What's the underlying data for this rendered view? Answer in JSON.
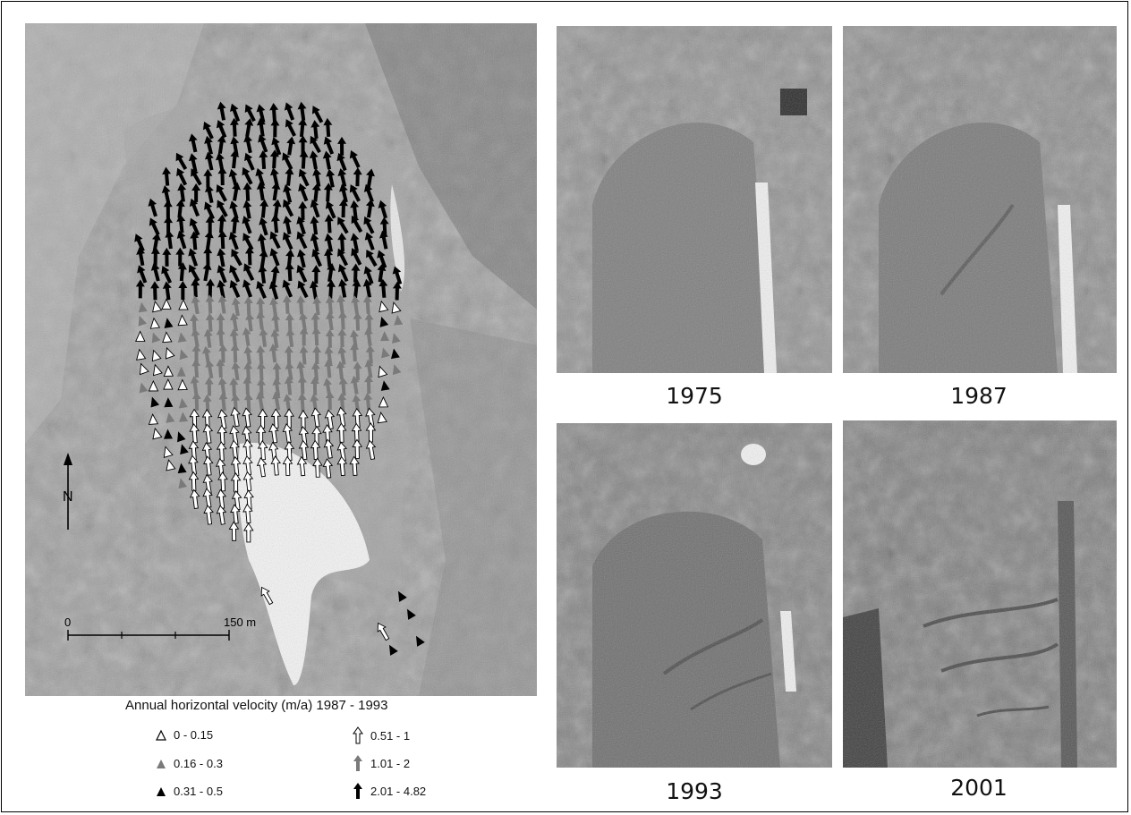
{
  "map": {
    "north_label": "N",
    "scale": {
      "start": "0",
      "end": "150 m"
    }
  },
  "legend": {
    "title": "Annual horizontal velocity (m/a) 1987 - 1993",
    "classes": [
      {
        "label": "0 - 0.15",
        "symbol": "triangle-outline-icon",
        "color": "#ffffff"
      },
      {
        "label": "0.16 - 0.3",
        "symbol": "triangle-gray-icon",
        "color": "#7a7a7a"
      },
      {
        "label": "0.31 - 0.5",
        "symbol": "triangle-black-icon",
        "color": "#000000"
      },
      {
        "label": "0.51 - 1",
        "symbol": "arrow-outline-icon",
        "color": "#ffffff"
      },
      {
        "label": "1.01 - 2",
        "symbol": "arrow-gray-icon",
        "color": "#7a7a7a"
      },
      {
        "label": "2.01 - 4.82",
        "symbol": "arrow-black-icon",
        "color": "#000000"
      }
    ]
  },
  "panels": [
    {
      "year": "1975"
    },
    {
      "year": "1987"
    },
    {
      "year": "1993"
    },
    {
      "year": "2001"
    }
  ]
}
